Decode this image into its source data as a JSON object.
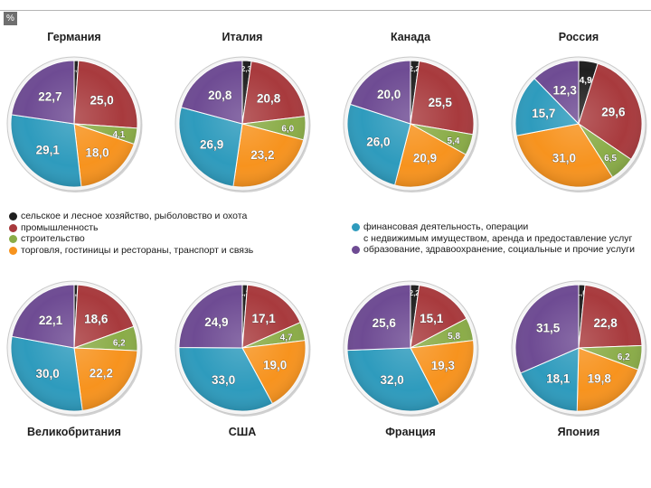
{
  "unit_badge": "%",
  "colors": {
    "agriculture": "#1e1e1e",
    "industry": "#a83a3d",
    "construction": "#8aac47",
    "trade": "#f7931e",
    "finance": "#2e9bbd",
    "education": "#6e4b93"
  },
  "legend": {
    "left": [
      {
        "key": "agriculture",
        "label": "сельское и лесное хозяйство, рыболовство и охота"
      },
      {
        "key": "industry",
        "label": "промышленность"
      },
      {
        "key": "construction",
        "label": "строительство"
      },
      {
        "key": "trade",
        "label": "торговля, гостиницы и рестораны, транспорт и связь"
      }
    ],
    "right": [
      {
        "key": "finance",
        "label": "финансовая деятельность, операции",
        "continuation": "с недвижимым имуществом, аренда и предоставление услуг"
      },
      {
        "key": "education",
        "label": "образование, здравоохранение, социальные и прочие услуги"
      }
    ]
  },
  "chart_data": [
    {
      "type": "pie",
      "title": "Германия",
      "categories": [
        "agriculture",
        "industry",
        "construction",
        "trade",
        "finance",
        "education"
      ],
      "values": [
        1.1,
        25.0,
        4.1,
        18.0,
        29.1,
        22.7
      ],
      "labels": [
        "1,1",
        "25,0",
        "4,1",
        "18,0",
        "29,1",
        "22,7"
      ]
    },
    {
      "type": "pie",
      "title": "Италия",
      "categories": [
        "agriculture",
        "industry",
        "construction",
        "trade",
        "finance",
        "education"
      ],
      "values": [
        2.3,
        20.8,
        6.0,
        23.2,
        26.9,
        20.8
      ],
      "labels": [
        "2,3",
        "20,8",
        "6,0",
        "23,2",
        "26,9",
        "20,8"
      ]
    },
    {
      "type": "pie",
      "title": "Канада",
      "categories": [
        "agriculture",
        "industry",
        "construction",
        "trade",
        "finance",
        "education"
      ],
      "values": [
        2.2,
        25.5,
        5.4,
        20.9,
        26.0,
        20.0
      ],
      "labels": [
        "2,2",
        "25,5",
        "5,4",
        "20,9",
        "26,0",
        "20,0"
      ]
    },
    {
      "type": "pie",
      "title": "Россия",
      "categories": [
        "agriculture",
        "industry",
        "construction",
        "trade",
        "finance",
        "education"
      ],
      "values": [
        4.9,
        29.6,
        6.5,
        31.0,
        15.7,
        12.3
      ],
      "labels": [
        "4,9",
        "29,6",
        "6,5",
        "31,0",
        "15,7",
        "12,3"
      ]
    },
    {
      "type": "pie",
      "title": "Великобритания",
      "categories": [
        "agriculture",
        "industry",
        "construction",
        "trade",
        "finance",
        "education"
      ],
      "values": [
        0.9,
        18.6,
        6.2,
        22.2,
        30.0,
        22.1
      ],
      "labels": [
        "0,9",
        "18,6",
        "6,2",
        "22,2",
        "30,0",
        "22,1"
      ]
    },
    {
      "type": "pie",
      "title": "США",
      "categories": [
        "agriculture",
        "industry",
        "construction",
        "trade",
        "finance",
        "education"
      ],
      "values": [
        1.3,
        17.1,
        4.7,
        19.0,
        33.0,
        24.9
      ],
      "labels": [
        "1,3",
        "17,1",
        "4,7",
        "19,0",
        "33,0",
        "24,9"
      ]
    },
    {
      "type": "pie",
      "title": "Франция",
      "categories": [
        "agriculture",
        "industry",
        "construction",
        "trade",
        "finance",
        "education"
      ],
      "values": [
        2.2,
        15.1,
        5.8,
        19.3,
        32.0,
        25.6
      ],
      "labels": [
        "2,2",
        "15,1",
        "5,8",
        "19,3",
        "32,0",
        "25,6"
      ]
    },
    {
      "type": "pie",
      "title": "Япония",
      "categories": [
        "agriculture",
        "industry",
        "construction",
        "trade",
        "finance",
        "education"
      ],
      "values": [
        1.6,
        22.8,
        6.2,
        19.8,
        18.1,
        31.5
      ],
      "labels": [
        "1,6",
        "22,8",
        "6,2",
        "19,8",
        "18,1",
        "31,5"
      ]
    }
  ]
}
